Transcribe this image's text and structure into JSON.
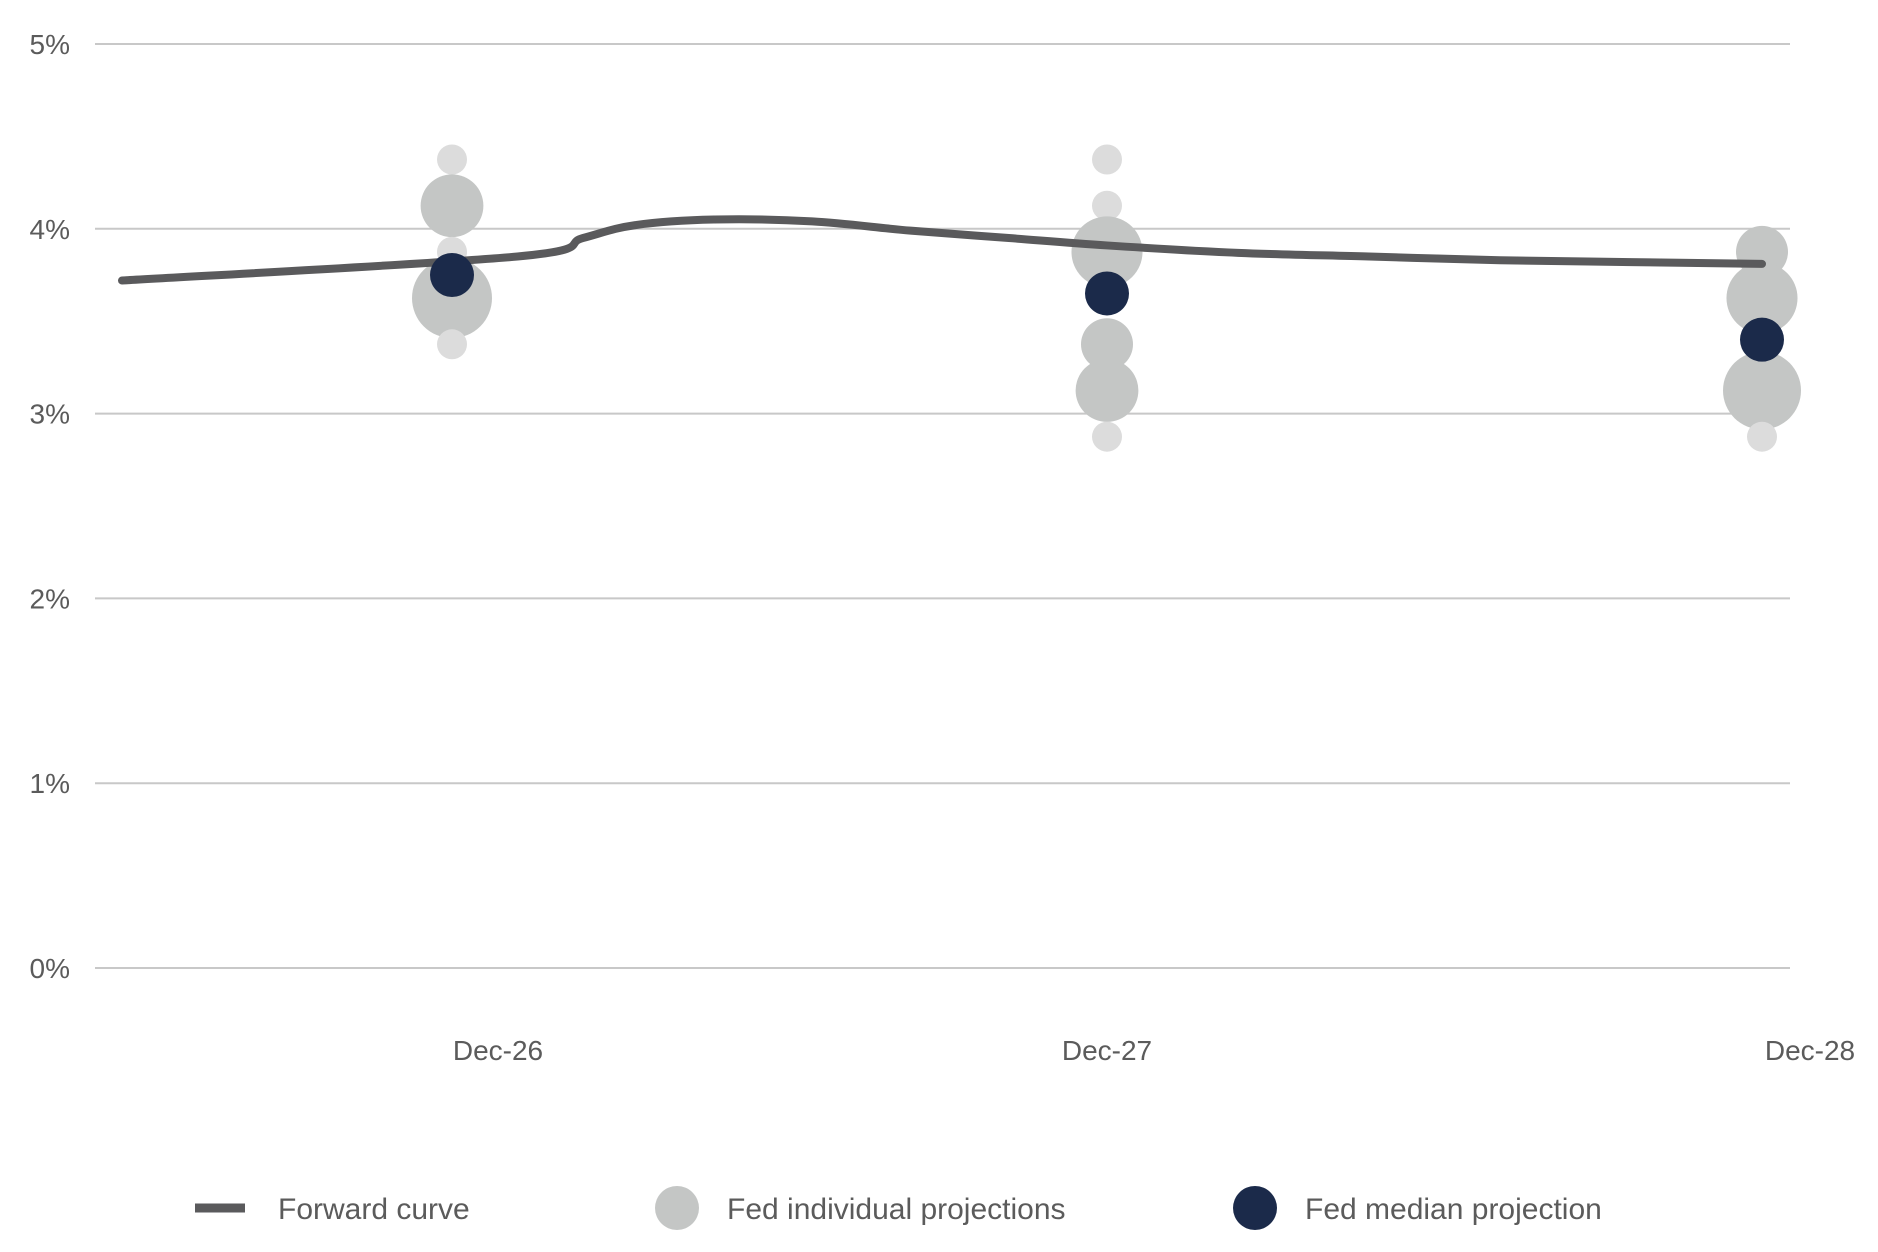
{
  "chart_data": {
    "type": "scatter",
    "title": "",
    "xlabel": "",
    "ylabel": "",
    "ylim": [
      0,
      5
    ],
    "yticks": [
      "0%",
      "1%",
      "2%",
      "3%",
      "4%",
      "5%"
    ],
    "grid": true,
    "legend_position": "bottom",
    "categories": [
      "Dec-26",
      "Dec-27",
      "Dec-28"
    ],
    "series": [
      {
        "name": "Forward curve",
        "kind": "line",
        "color": "#5a5a5c",
        "x": [
          0.0,
          0.1,
          0.2,
          0.28,
          0.4,
          0.55,
          0.7,
          0.85,
          1.0,
          1.2,
          1.4,
          1.6,
          1.8,
          2.0
        ],
        "y": [
          3.72,
          3.85,
          3.95,
          4.02,
          4.05,
          4.04,
          3.99,
          3.95,
          3.91,
          3.87,
          3.85,
          3.83,
          3.82,
          3.81
        ]
      },
      {
        "name": "Fed individual projections",
        "kind": "dots",
        "color": "#c4c6c5",
        "points": [
          {
            "x": 0,
            "y": 4.375,
            "count": 1
          },
          {
            "x": 0,
            "y": 4.125,
            "count": 3
          },
          {
            "x": 0,
            "y": 3.875,
            "count": 1
          },
          {
            "x": 0,
            "y": 3.625,
            "count": 6
          },
          {
            "x": 0,
            "y": 3.375,
            "count": 1
          },
          {
            "x": 1,
            "y": 4.375,
            "count": 1
          },
          {
            "x": 1,
            "y": 4.125,
            "count": 1
          },
          {
            "x": 1,
            "y": 3.875,
            "count": 4
          },
          {
            "x": 1,
            "y": 3.375,
            "count": 2
          },
          {
            "x": 1,
            "y": 3.125,
            "count": 3
          },
          {
            "x": 1,
            "y": 2.875,
            "count": 1
          },
          {
            "x": 2,
            "y": 3.875,
            "count": 2
          },
          {
            "x": 2,
            "y": 3.625,
            "count": 4
          },
          {
            "x": 2,
            "y": 3.125,
            "count": 5
          },
          {
            "x": 2,
            "y": 2.875,
            "count": 1
          }
        ]
      },
      {
        "name": "Fed median projection",
        "kind": "dots",
        "color": "#1b2a4a",
        "points": [
          {
            "x": 0,
            "y": 3.75
          },
          {
            "x": 1,
            "y": 3.65
          },
          {
            "x": 2,
            "y": 3.4
          }
        ]
      }
    ],
    "legend": [
      "Forward curve",
      "Fed individual projections",
      "Fed median projection"
    ]
  }
}
